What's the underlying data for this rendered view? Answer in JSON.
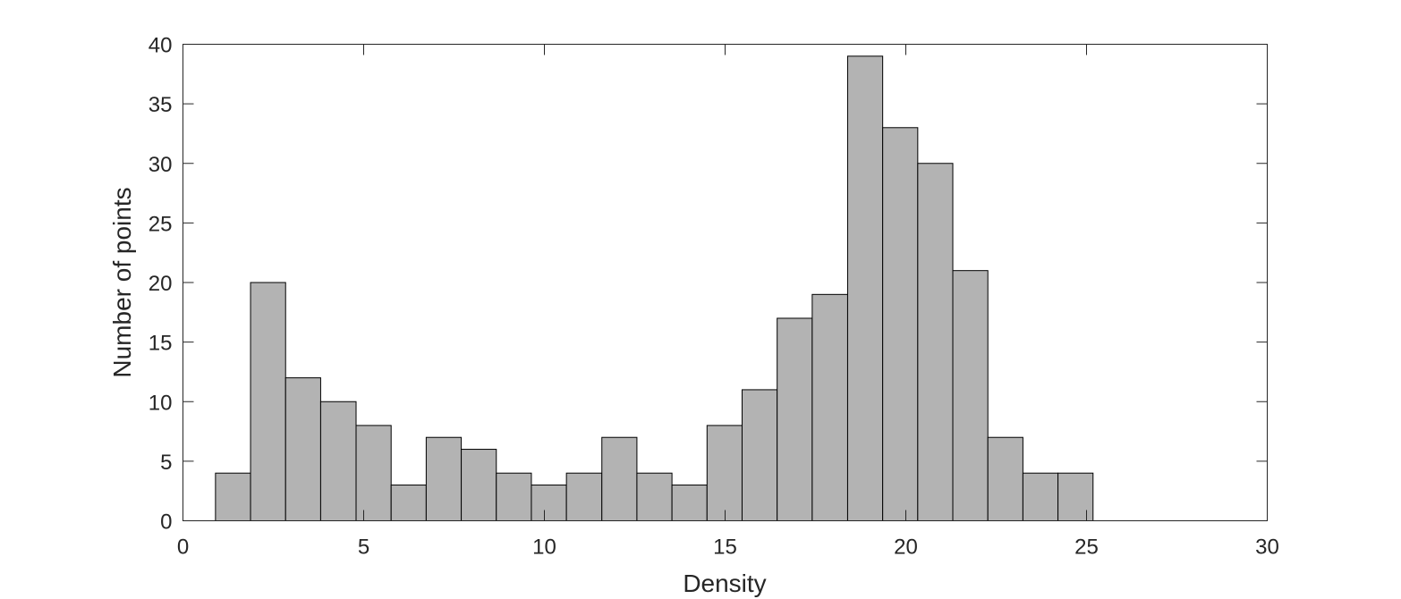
{
  "chart_data": {
    "type": "bar",
    "title": "",
    "xlabel": "Density",
    "ylabel": "Number of points",
    "xlim": [
      0,
      30
    ],
    "ylim": [
      0,
      40
    ],
    "xticks": [
      0,
      5,
      10,
      15,
      20,
      25,
      30
    ],
    "yticks": [
      0,
      5,
      10,
      15,
      20,
      25,
      30,
      35,
      40
    ],
    "grid": false,
    "bar_color": "#b3b3b3",
    "bins": [
      {
        "x0": 0.9,
        "x1": 1.87,
        "count": 4
      },
      {
        "x0": 1.87,
        "x1": 2.84,
        "count": 20
      },
      {
        "x0": 2.84,
        "x1": 3.81,
        "count": 12
      },
      {
        "x0": 3.81,
        "x1": 4.79,
        "count": 10
      },
      {
        "x0": 4.79,
        "x1": 5.76,
        "count": 8
      },
      {
        "x0": 5.76,
        "x1": 6.73,
        "count": 3
      },
      {
        "x0": 6.73,
        "x1": 7.7,
        "count": 7
      },
      {
        "x0": 7.7,
        "x1": 8.67,
        "count": 6
      },
      {
        "x0": 8.67,
        "x1": 9.64,
        "count": 4
      },
      {
        "x0": 9.64,
        "x1": 10.61,
        "count": 3
      },
      {
        "x0": 10.61,
        "x1": 11.59,
        "count": 4
      },
      {
        "x0": 11.59,
        "x1": 12.56,
        "count": 7
      },
      {
        "x0": 12.56,
        "x1": 13.53,
        "count": 4
      },
      {
        "x0": 13.53,
        "x1": 14.5,
        "count": 3
      },
      {
        "x0": 14.5,
        "x1": 15.47,
        "count": 8
      },
      {
        "x0": 15.47,
        "x1": 16.44,
        "count": 11
      },
      {
        "x0": 16.44,
        "x1": 17.41,
        "count": 17
      },
      {
        "x0": 17.41,
        "x1": 18.39,
        "count": 19
      },
      {
        "x0": 18.39,
        "x1": 19.36,
        "count": 39
      },
      {
        "x0": 19.36,
        "x1": 20.33,
        "count": 33
      },
      {
        "x0": 20.33,
        "x1": 21.3,
        "count": 30
      },
      {
        "x0": 21.3,
        "x1": 22.27,
        "count": 21
      },
      {
        "x0": 22.27,
        "x1": 23.24,
        "count": 7
      },
      {
        "x0": 23.24,
        "x1": 24.21,
        "count": 4
      },
      {
        "x0": 24.21,
        "x1": 25.18,
        "count": 4
      }
    ]
  }
}
